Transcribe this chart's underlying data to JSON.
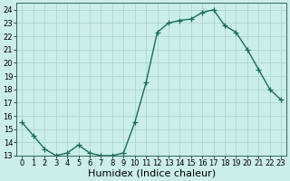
{
  "x": [
    0,
    1,
    2,
    3,
    4,
    5,
    6,
    7,
    8,
    9,
    10,
    11,
    12,
    13,
    14,
    15,
    16,
    17,
    18,
    19,
    20,
    21,
    22,
    23
  ],
  "y": [
    15.5,
    14.5,
    13.5,
    13.0,
    13.2,
    13.8,
    13.2,
    13.0,
    13.0,
    13.2,
    15.5,
    18.5,
    22.3,
    23.0,
    23.2,
    23.3,
    23.8,
    24.0,
    22.8,
    22.3,
    21.0,
    19.5,
    18.0,
    17.2
  ],
  "line_color": "#1a6b5a",
  "marker": "+",
  "markersize": 4,
  "linewidth": 1.0,
  "bg_color": "#cceee8",
  "grid_color": "#aad8d0",
  "xlabel": "Humidex (Indice chaleur)",
  "xlabel_fontsize": 8,
  "ylim": [
    13,
    24.5
  ],
  "yticks": [
    13,
    14,
    15,
    16,
    17,
    18,
    19,
    20,
    21,
    22,
    23,
    24
  ],
  "xticks": [
    0,
    1,
    2,
    3,
    4,
    5,
    6,
    7,
    8,
    9,
    10,
    11,
    12,
    13,
    14,
    15,
    16,
    17,
    18,
    19,
    20,
    21,
    22,
    23
  ],
  "tick_fontsize": 6,
  "fig_bg_color": "#cceee8"
}
